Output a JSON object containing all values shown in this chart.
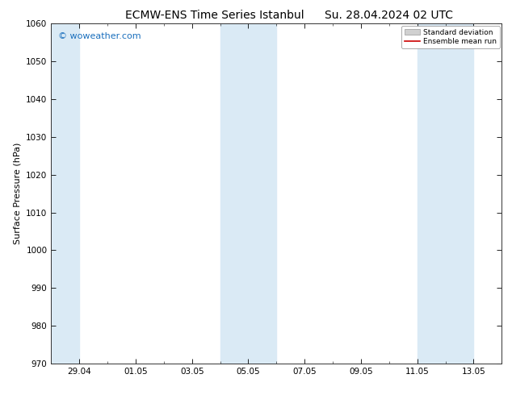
{
  "title_left": "ECMW-ENS Time Series Istanbul",
  "title_right": "Su. 28.04.2024 02 UTC",
  "ylabel": "Surface Pressure (hPa)",
  "ylim": [
    970,
    1060
  ],
  "yticks": [
    970,
    980,
    990,
    1000,
    1010,
    1020,
    1030,
    1040,
    1050,
    1060
  ],
  "shade_color": "#daeaf5",
  "background_color": "#ffffff",
  "watermark_text": "© woweather.com",
  "watermark_color": "#1a6fbd",
  "watermark_fontsize": 8,
  "legend_std_label": "Standard deviation",
  "legend_mean_label": "Ensemble mean run",
  "legend_std_facecolor": "#d0d0d0",
  "legend_std_edgecolor": "#999999",
  "legend_mean_color": "#cc0000",
  "title_fontsize": 10,
  "axis_label_fontsize": 8,
  "tick_fontsize": 7.5
}
